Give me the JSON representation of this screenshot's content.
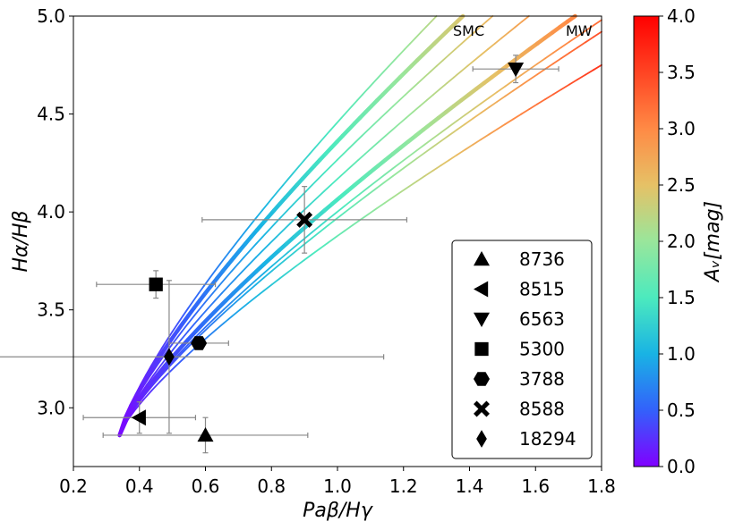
{
  "chart_data": {
    "type": "scatter",
    "xlabel": "Paβ/Hγ",
    "ylabel": "Hα/Hβ",
    "xlim": [
      0.2,
      1.8
    ],
    "ylim": [
      2.7,
      5.0
    ],
    "xticks": [
      "0.2",
      "0.4",
      "0.6",
      "0.8",
      "1.0",
      "1.2",
      "1.4",
      "1.6",
      "1.8"
    ],
    "yticks": [
      "3.0",
      "3.5",
      "4.0",
      "4.5",
      "5.0"
    ],
    "colorbar": {
      "label": "Aᵥ[mag]",
      "range": [
        0.0,
        4.0
      ],
      "ticks": [
        "0.0",
        "0.5",
        "1.0",
        "1.5",
        "2.0",
        "2.5",
        "3.0",
        "3.5",
        "4.0"
      ],
      "colors": [
        "#8000ff",
        "#3361fb",
        "#19b3e4",
        "#4ceabe",
        "#99e69b",
        "#e6c166",
        "#ff8a45",
        "#ff4423",
        "#ff0000"
      ]
    },
    "curve_annotations": [
      "SMC",
      "MW"
    ],
    "attenuation_curves": [
      {
        "start": [
          0.34,
          2.86
        ],
        "end": [
          1.3,
          5.0
        ]
      },
      {
        "start": [
          0.34,
          2.86
        ],
        "end": [
          1.38,
          5.0
        ]
      },
      {
        "start": [
          0.34,
          2.86
        ],
        "end": [
          1.47,
          5.0
        ]
      },
      {
        "start": [
          0.34,
          2.86
        ],
        "end": [
          1.58,
          5.0
        ]
      },
      {
        "start": [
          0.34,
          2.86
        ],
        "end": [
          1.72,
          5.0
        ]
      },
      {
        "start": [
          0.34,
          2.86
        ],
        "end": [
          1.8,
          4.98
        ]
      },
      {
        "start": [
          0.34,
          2.86
        ],
        "end": [
          1.8,
          4.92
        ]
      },
      {
        "start": [
          0.34,
          2.86
        ],
        "end": [
          1.8,
          4.75
        ]
      }
    ],
    "series": [
      {
        "name": "8736",
        "marker": "triangle-up",
        "x": 0.6,
        "y": 2.86,
        "xerr": [
          0.31,
          0.31
        ],
        "yerr": [
          0.09,
          0.09
        ]
      },
      {
        "name": "8515",
        "marker": "triangle-left",
        "x": 0.4,
        "y": 2.95,
        "xerr": [
          0.17,
          0.17
        ],
        "yerr": [
          0.08,
          0.08
        ]
      },
      {
        "name": "6563",
        "marker": "triangle-down",
        "x": 1.54,
        "y": 4.73,
        "xerr": [
          0.13,
          0.13
        ],
        "yerr": [
          0.07,
          0.07
        ]
      },
      {
        "name": "5300",
        "marker": "square",
        "x": 0.45,
        "y": 3.63,
        "xerr": [
          0.18,
          0.18
        ],
        "yerr": [
          0.07,
          0.07
        ]
      },
      {
        "name": "3788",
        "marker": "hexagon",
        "x": 0.58,
        "y": 3.33,
        "xerr": [
          0.09,
          0.09
        ],
        "yerr": [
          0.0,
          0.0
        ]
      },
      {
        "name": "8588",
        "marker": "x",
        "x": 0.9,
        "y": 3.96,
        "xerr": [
          0.31,
          0.31
        ],
        "yerr": [
          0.17,
          0.17
        ]
      },
      {
        "name": "18294",
        "marker": "diamond",
        "x": 0.49,
        "y": 3.26,
        "xerr": [
          0.65,
          0.65
        ],
        "yerr": [
          0.39,
          0.39
        ]
      }
    ]
  }
}
